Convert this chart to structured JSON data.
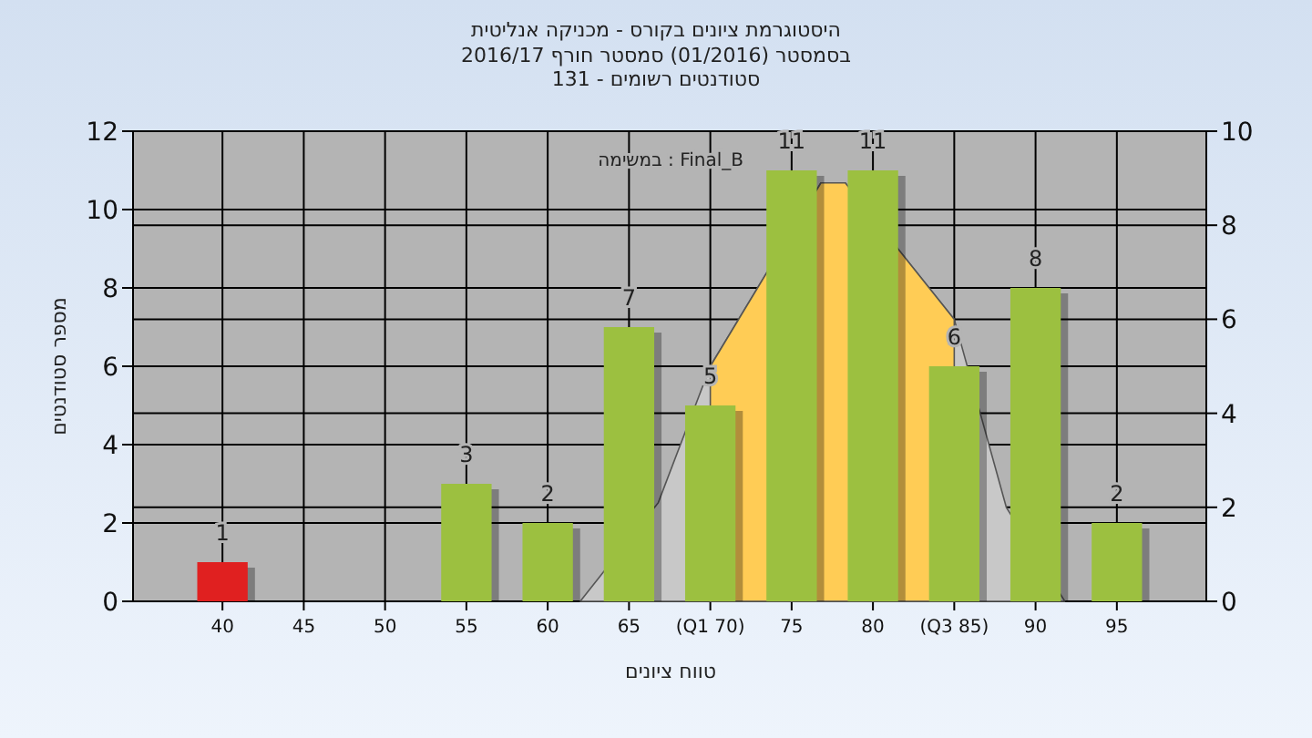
{
  "chart_data": {
    "type": "bar",
    "title": "היסטוגרמת ציונים בקורס - מכניקה אנליטית",
    "subtitle": "בסמסטר (01/2016) סמסטר חורף 2016/17\nסטודנטים רשומים - 131",
    "xlabel": "טווח ציונים",
    "ylabel": "מספר סטודנטים",
    "annotations": [
      "במשימה : Final_B"
    ],
    "series": [
      {
        "type": "area",
        "axis": "y2",
        "color": "#c8c8c8",
        "x": [
          62,
          66.8,
          70,
          76.8,
          78.3,
          85,
          88.2,
          91.8
        ],
        "values": [
          0,
          2.1,
          5,
          8.9,
          8.9,
          6,
          2,
          0
        ]
      },
      {
        "type": "area",
        "axis": "y2",
        "color": "#ffcc55",
        "x": [
          70,
          76.8,
          78.3,
          85
        ],
        "values": [
          5,
          8.9,
          8.9,
          6
        ]
      },
      {
        "x": [
          40,
          45,
          50,
          55,
          60,
          65,
          70,
          75,
          80,
          85,
          90,
          95
        ],
        "colors": [
          "#e02020",
          "#9cc040",
          "#9cc040",
          "#9cc040",
          "#9cc040",
          "#9cc040",
          "#9cc040",
          "#9cc040",
          "#9cc040",
          "#9cc040",
          "#9cc040",
          "#9cc040"
        ],
        "values": [
          1,
          0,
          0,
          3,
          2,
          7,
          5,
          11,
          11,
          6,
          8,
          2
        ],
        "value_labels": [
          "1",
          null,
          null,
          "3",
          "2",
          "7",
          "5",
          "11",
          "11",
          "6",
          "8",
          "2"
        ]
      }
    ],
    "xlim": [
      34.5,
      100.5
    ],
    "xticks": [
      40,
      45,
      50,
      55,
      60,
      65,
      {
        "value": 70,
        "label": "(Q1 70)"
      },
      75,
      80,
      {
        "value": 85,
        "label": "(Q3 85)"
      },
      90,
      95
    ],
    "ylim": [
      0,
      12
    ],
    "yticks": [
      0,
      2,
      4,
      6,
      8,
      10,
      12
    ],
    "y2lim": [
      0,
      10
    ],
    "y2ticks": [
      0,
      2,
      4,
      6,
      8,
      10
    ],
    "grid": true
  }
}
